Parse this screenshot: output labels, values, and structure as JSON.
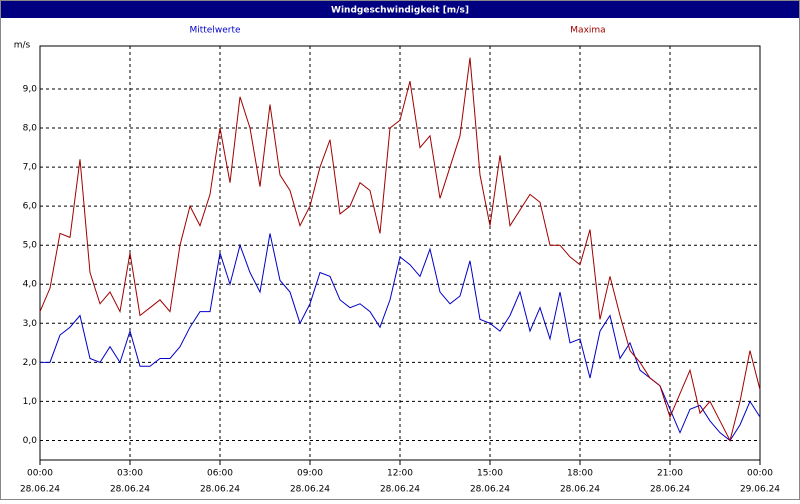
{
  "chart_data": {
    "type": "line",
    "title": "Windgeschwindigkeit [m/s]",
    "ylabel": "m/s",
    "x": [
      "28.06.24 00:00",
      "28.06.24 00:20",
      "28.06.24 00:40",
      "28.06.24 01:00",
      "28.06.24 01:20",
      "28.06.24 01:40",
      "28.06.24 02:00",
      "28.06.24 02:20",
      "28.06.24 02:40",
      "28.06.24 03:00",
      "28.06.24 03:20",
      "28.06.24 03:40",
      "28.06.24 04:00",
      "28.06.24 04:20",
      "28.06.24 04:40",
      "28.06.24 05:00",
      "28.06.24 05:20",
      "28.06.24 05:40",
      "28.06.24 06:00",
      "28.06.24 06:20",
      "28.06.24 06:40",
      "28.06.24 07:00",
      "28.06.24 07:20",
      "28.06.24 07:40",
      "28.06.24 08:00",
      "28.06.24 08:20",
      "28.06.24 08:40",
      "28.06.24 09:00",
      "28.06.24 09:20",
      "28.06.24 09:40",
      "28.06.24 10:00",
      "28.06.24 10:20",
      "28.06.24 10:40",
      "28.06.24 11:00",
      "28.06.24 11:20",
      "28.06.24 11:40",
      "28.06.24 12:00",
      "28.06.24 12:20",
      "28.06.24 12:40",
      "28.06.24 13:00",
      "28.06.24 13:20",
      "28.06.24 13:40",
      "28.06.24 14:00",
      "28.06.24 14:20",
      "28.06.24 14:40",
      "28.06.24 15:00",
      "28.06.24 15:20",
      "28.06.24 15:40",
      "28.06.24 16:00",
      "28.06.24 16:20",
      "28.06.24 16:40",
      "28.06.24 17:00",
      "28.06.24 17:20",
      "28.06.24 17:40",
      "28.06.24 18:00",
      "28.06.24 18:20",
      "28.06.24 18:40",
      "28.06.24 19:00",
      "28.06.24 19:20",
      "28.06.24 19:40",
      "28.06.24 20:00",
      "28.06.24 20:20",
      "28.06.24 20:40",
      "28.06.24 21:00",
      "28.06.24 21:20",
      "28.06.24 21:40",
      "28.06.24 22:00",
      "28.06.24 22:20",
      "28.06.24 22:40",
      "28.06.24 23:00",
      "28.06.24 23:20",
      "28.06.24 23:40",
      "29.06.24 00:00"
    ],
    "series": [
      {
        "name": "Mittelwerte",
        "color": "#0000c8",
        "values": [
          2.0,
          2.0,
          2.7,
          2.9,
          3.2,
          2.1,
          2.0,
          2.4,
          2.0,
          2.8,
          1.9,
          1.9,
          2.1,
          2.1,
          2.4,
          2.9,
          3.3,
          3.3,
          4.8,
          4.0,
          5.0,
          4.3,
          3.8,
          5.3,
          4.1,
          3.8,
          3.0,
          3.5,
          4.3,
          4.2,
          3.6,
          3.4,
          3.5,
          3.3,
          2.9,
          3.6,
          4.7,
          4.5,
          4.2,
          4.9,
          3.8,
          3.5,
          3.7,
          4.6,
          3.1,
          3.0,
          2.8,
          3.2,
          3.8,
          2.8,
          3.4,
          2.6,
          3.8,
          2.5,
          2.6,
          1.6,
          2.8,
          3.2,
          2.1,
          2.5,
          1.8,
          1.6,
          1.4,
          0.8,
          0.2,
          0.8,
          0.9,
          0.5,
          0.2,
          0.0,
          0.4,
          1.0,
          0.6
        ]
      },
      {
        "name": "Maxima",
        "color": "#a00000",
        "values": [
          3.3,
          3.9,
          5.3,
          5.2,
          7.2,
          4.3,
          3.5,
          3.8,
          3.3,
          4.8,
          3.2,
          3.4,
          3.6,
          3.3,
          5.0,
          6.0,
          5.5,
          6.3,
          8.0,
          6.6,
          8.8,
          8.0,
          6.5,
          8.6,
          6.8,
          6.4,
          5.5,
          6.0,
          7.0,
          7.7,
          5.8,
          6.0,
          6.6,
          6.4,
          5.3,
          8.0,
          8.2,
          9.2,
          7.5,
          7.8,
          6.2,
          7.0,
          7.8,
          9.8,
          6.8,
          5.5,
          7.3,
          5.5,
          5.9,
          6.3,
          6.1,
          5.0,
          5.0,
          4.7,
          4.5,
          5.4,
          3.1,
          4.2,
          3.2,
          2.3,
          2.0,
          1.6,
          1.4,
          0.6,
          1.2,
          1.8,
          0.7,
          1.0,
          0.5,
          0.0,
          1.0,
          2.3,
          1.3
        ]
      }
    ],
    "xlim": [
      "28.06.24 00:00",
      "29.06.24 00:00"
    ],
    "xticks": [
      {
        "value": "28.06.24 00:00",
        "label": "00:00",
        "date": "28.06.24"
      },
      {
        "value": "28.06.24 03:00",
        "label": "03:00",
        "date": "28.06.24"
      },
      {
        "value": "28.06.24 06:00",
        "label": "06:00",
        "date": "28.06.24"
      },
      {
        "value": "28.06.24 09:00",
        "label": "09:00",
        "date": "28.06.24"
      },
      {
        "value": "28.06.24 12:00",
        "label": "12:00",
        "date": "28.06.24"
      },
      {
        "value": "28.06.24 15:00",
        "label": "15:00",
        "date": "28.06.24"
      },
      {
        "value": "28.06.24 18:00",
        "label": "18:00",
        "date": "28.06.24"
      },
      {
        "value": "28.06.24 21:00",
        "label": "21:00",
        "date": "28.06.24"
      },
      {
        "value": "29.06.24 00:00",
        "label": "00:00",
        "date": "29.06.24"
      }
    ],
    "ylim": [
      -0.5,
      10.1
    ],
    "yticks": [
      {
        "value": 0,
        "label": "0,0"
      },
      {
        "value": 1,
        "label": "1,0"
      },
      {
        "value": 2,
        "label": "2,0"
      },
      {
        "value": 3,
        "label": "3,0"
      },
      {
        "value": 4,
        "label": "4,0"
      },
      {
        "value": 5,
        "label": "5,0"
      },
      {
        "value": 6,
        "label": "6,0"
      },
      {
        "value": 7,
        "label": "7,0"
      },
      {
        "value": 8,
        "label": "8,0"
      },
      {
        "value": 9,
        "label": "9,0"
      }
    ],
    "grid": true
  }
}
